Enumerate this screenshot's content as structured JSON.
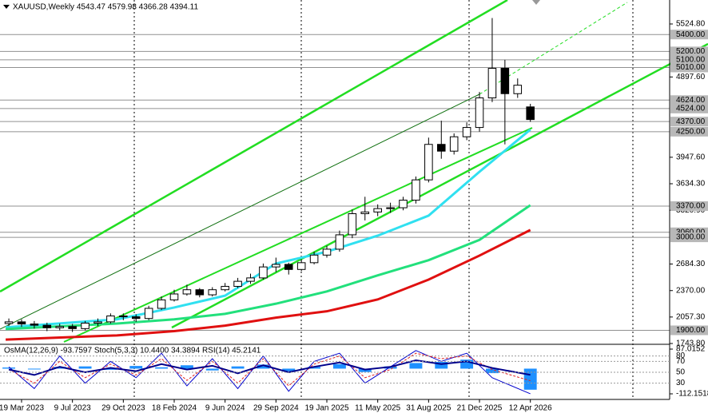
{
  "chart_data": {
    "type": "candlestick",
    "title": "XAUUSD,Weekly  4543.47 4579.98 4366.28 4394.11",
    "x": [
      -4,
      0,
      4,
      8,
      12,
      16,
      20,
      24,
      28,
      32,
      36,
      40,
      44,
      48,
      52,
      56,
      60,
      64,
      68,
      72,
      76,
      80,
      84,
      88,
      92,
      96,
      100,
      104,
      108,
      112,
      116,
      120,
      124,
      128,
      132,
      136,
      140,
      144,
      148,
      152,
      156,
      160
    ],
    "open": [
      1980,
      2000,
      1975,
      1960,
      1930,
      1945,
      1920,
      1985,
      2000,
      2070,
      2060,
      2040,
      2160,
      2260,
      2330,
      2380,
      2320,
      2380,
      2420,
      2480,
      2520,
      2650,
      2680,
      2620,
      2700,
      2790,
      2860,
      3030,
      3280,
      3300,
      3340,
      3350,
      3440,
      3680,
      4100,
      4020,
      4190,
      4300,
      4650,
      5000,
      4700,
      4543.47
    ],
    "high": [
      2040,
      2030,
      2010,
      1990,
      1980,
      1975,
      2010,
      2040,
      2100,
      2100,
      2090,
      2190,
      2300,
      2380,
      2440,
      2400,
      2410,
      2460,
      2520,
      2570,
      2690,
      2760,
      2700,
      2740,
      2830,
      2900,
      3080,
      3330,
      3480,
      3390,
      3410,
      3480,
      3720,
      4180,
      4380,
      4230,
      4360,
      4720,
      5595,
      5100,
      4880,
      4579.98
    ],
    "low": [
      1950,
      1940,
      1920,
      1890,
      1900,
      1880,
      1900,
      1950,
      1980,
      2020,
      2000,
      2020,
      2140,
      2240,
      2310,
      2290,
      2300,
      2360,
      2400,
      2450,
      2500,
      2590,
      2560,
      2600,
      2680,
      2760,
      2830,
      2990,
      3200,
      3250,
      3290,
      3320,
      3400,
      3650,
      3930,
      3980,
      4150,
      4250,
      4600,
      4100,
      4650,
      4366.28
    ],
    "close": [
      2000,
      1975,
      1960,
      1930,
      1945,
      1920,
      1985,
      2000,
      2070,
      2060,
      2040,
      2160,
      2260,
      2330,
      2380,
      2320,
      2380,
      2420,
      2480,
      2520,
      2650,
      2680,
      2620,
      2700,
      2790,
      2860,
      3030,
      3280,
      3300,
      3340,
      3350,
      3440,
      3680,
      4100,
      4020,
      4190,
      4300,
      4650,
      5000,
      4700,
      4800,
      4394.11
    ],
    "xlim": [
      -6.78,
      203.8
    ],
    "xticks": [
      {
        "value": 0,
        "label": "19 Mar 2023"
      },
      {
        "value": 16,
        "label": "9 Jul 2023"
      },
      {
        "value": 32,
        "label": "29 Oct 2023"
      },
      {
        "value": 48,
        "label": "18 Feb 2024"
      },
      {
        "value": 64,
        "label": "9 Jun 2024"
      },
      {
        "value": 80,
        "label": "29 Sep 2024"
      },
      {
        "value": 96,
        "label": "19 Jan 2025"
      },
      {
        "value": 112,
        "label": "11 May 2025"
      },
      {
        "value": 128,
        "label": "31 Aug 2025"
      },
      {
        "value": 144,
        "label": "21 Dec 2025"
      },
      {
        "value": 160,
        "label": "12 Apr 2026"
      }
    ],
    "ylim": [
      1743.8,
      5808.3
    ],
    "yticks": [
      {
        "value": 5524.8,
        "label": "5524.80"
      },
      {
        "value": 4897.6,
        "label": "4897.60"
      },
      {
        "value": 3947.6,
        "label": "3947.60"
      },
      {
        "value": 3634.3,
        "label": "3634.30"
      },
      {
        "value": 3320.9,
        "label": "3320.90"
      },
      {
        "value": 2684.3,
        "label": "2684.30"
      },
      {
        "value": 2370,
        "label": "2370.00"
      },
      {
        "value": 2057.3,
        "label": "2057.30"
      },
      {
        "value": 1743.8,
        "label": "1743.80"
      }
    ],
    "levels": [
      {
        "value": 5400,
        "label": "5400.00"
      },
      {
        "value": 5200,
        "label": "5200.00"
      },
      {
        "value": 5100,
        "label": "5100.00"
      },
      {
        "value": 5010,
        "label": "5010.00"
      },
      {
        "value": 4624,
        "label": "4624.00"
      },
      {
        "value": 4524,
        "label": "4524.00"
      },
      {
        "value": 4370,
        "label": "4370.00"
      },
      {
        "value": 4250,
        "label": "4250.00"
      },
      {
        "value": 3370,
        "label": "3370.00"
      },
      {
        "value": 3060,
        "label": "3060.00"
      },
      {
        "value": 3000,
        "label": "3000.00"
      },
      {
        "value": 1900,
        "label": "1900.00"
      }
    ],
    "moving_averages": {
      "x": [
        -5,
        30,
        48,
        64,
        80,
        96,
        112,
        128,
        144,
        160
      ],
      "series": [
        {
          "color": "#30e0f0",
          "values": [
            1935,
            2030,
            2170,
            2310,
            2690,
            2830,
            3020,
            3257,
            3776,
            4275
          ]
        },
        {
          "color": "#22e07c",
          "values": [
            1915,
            1980,
            2030,
            2095,
            2215,
            2360,
            2550,
            2730,
            2970,
            3380
          ]
        },
        {
          "color": "#e01010",
          "values": [
            1790,
            1840,
            1890,
            1955,
            2050,
            2125,
            2265,
            2500,
            2784,
            3087
          ]
        }
      ]
    },
    "indicator": {
      "title": "OsMA(12,26,9) -93.7597  Stoch(5,3,3) 10.4400 34.3894  RSI(14) 45.2141",
      "x": [
        -4,
        4,
        12,
        20,
        28,
        36,
        44,
        52,
        60,
        68,
        76,
        84,
        92,
        100,
        108,
        116,
        124,
        132,
        140,
        148,
        160
      ],
      "ylim": [
        -112.1518,
        87.0152
      ],
      "yticks": [
        87.0152,
        -112.1518
      ],
      "y2lim": [
        0,
        100
      ],
      "y2ticks": [
        80,
        70,
        50,
        30
      ],
      "osma": {
        "color": "#1e90ff",
        "values": [
          5,
          -3,
          8,
          10,
          -5,
          12,
          6,
          15,
          -8,
          10,
          18,
          -12,
          8,
          20,
          -15,
          10,
          25,
          30,
          40,
          -20,
          -93.7597
        ]
      },
      "series": [
        {
          "color": "#0000cd",
          "values": [
            60,
            20,
            80,
            30,
            70,
            40,
            85,
            25,
            75,
            20,
            80,
            15,
            70,
            85,
            30,
            60,
            90,
            70,
            85,
            40,
            10.44
          ]
        },
        {
          "color": "#e02020",
          "values": [
            55,
            30,
            70,
            40,
            65,
            45,
            75,
            35,
            70,
            30,
            75,
            25,
            65,
            80,
            40,
            55,
            85,
            75,
            80,
            55,
            34.3894
          ]
        },
        {
          "color": "#00008b",
          "values": [
            55,
            45,
            60,
            50,
            58,
            52,
            65,
            55,
            62,
            48,
            63,
            50,
            60,
            68,
            55,
            60,
            72,
            65,
            70,
            58,
            45.2141
          ]
        }
      ]
    }
  }
}
